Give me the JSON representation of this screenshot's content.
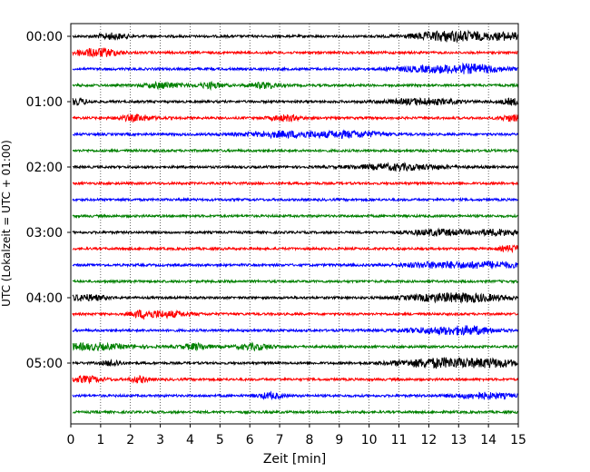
{
  "chart_data": {
    "type": "line",
    "xlabel": "Zeit  [min]",
    "ylabel": "UTC (Lokalzeit = UTC + 01:00)",
    "xlim": [
      0,
      15
    ],
    "x_ticks": [
      0,
      1,
      2,
      3,
      4,
      5,
      6,
      7,
      8,
      9,
      10,
      11,
      12,
      13,
      14,
      15
    ],
    "x_grid": "dotted vertical lines at each minute",
    "y_tick_labels": [
      "00:00",
      "01:00",
      "02:00",
      "03:00",
      "04:00",
      "05:00"
    ],
    "row_interval_minutes": 15,
    "series_colors": [
      "#000000",
      "#ff0000",
      "#0000ff",
      "#008000"
    ],
    "traces": [
      {
        "start": "00:00",
        "color": "#000000"
      },
      {
        "start": "00:15",
        "color": "#ff0000"
      },
      {
        "start": "00:30",
        "color": "#0000ff"
      },
      {
        "start": "00:45",
        "color": "#008000"
      },
      {
        "start": "01:00",
        "color": "#000000"
      },
      {
        "start": "01:15",
        "color": "#ff0000"
      },
      {
        "start": "01:30",
        "color": "#0000ff"
      },
      {
        "start": "01:45",
        "color": "#008000"
      },
      {
        "start": "02:00",
        "color": "#000000"
      },
      {
        "start": "02:15",
        "color": "#ff0000"
      },
      {
        "start": "02:30",
        "color": "#0000ff"
      },
      {
        "start": "02:45",
        "color": "#008000"
      },
      {
        "start": "03:00",
        "color": "#000000"
      },
      {
        "start": "03:15",
        "color": "#ff0000"
      },
      {
        "start": "03:30",
        "color": "#0000ff"
      },
      {
        "start": "03:45",
        "color": "#008000"
      },
      {
        "start": "04:00",
        "color": "#000000"
      },
      {
        "start": "04:15",
        "color": "#ff0000"
      },
      {
        "start": "04:30",
        "color": "#0000ff"
      },
      {
        "start": "04:45",
        "color": "#008000"
      },
      {
        "start": "05:00",
        "color": "#000000"
      },
      {
        "start": "05:15",
        "color": "#ff0000"
      },
      {
        "start": "05:30",
        "color": "#0000ff"
      },
      {
        "start": "05:45",
        "color": "#008000"
      }
    ]
  }
}
